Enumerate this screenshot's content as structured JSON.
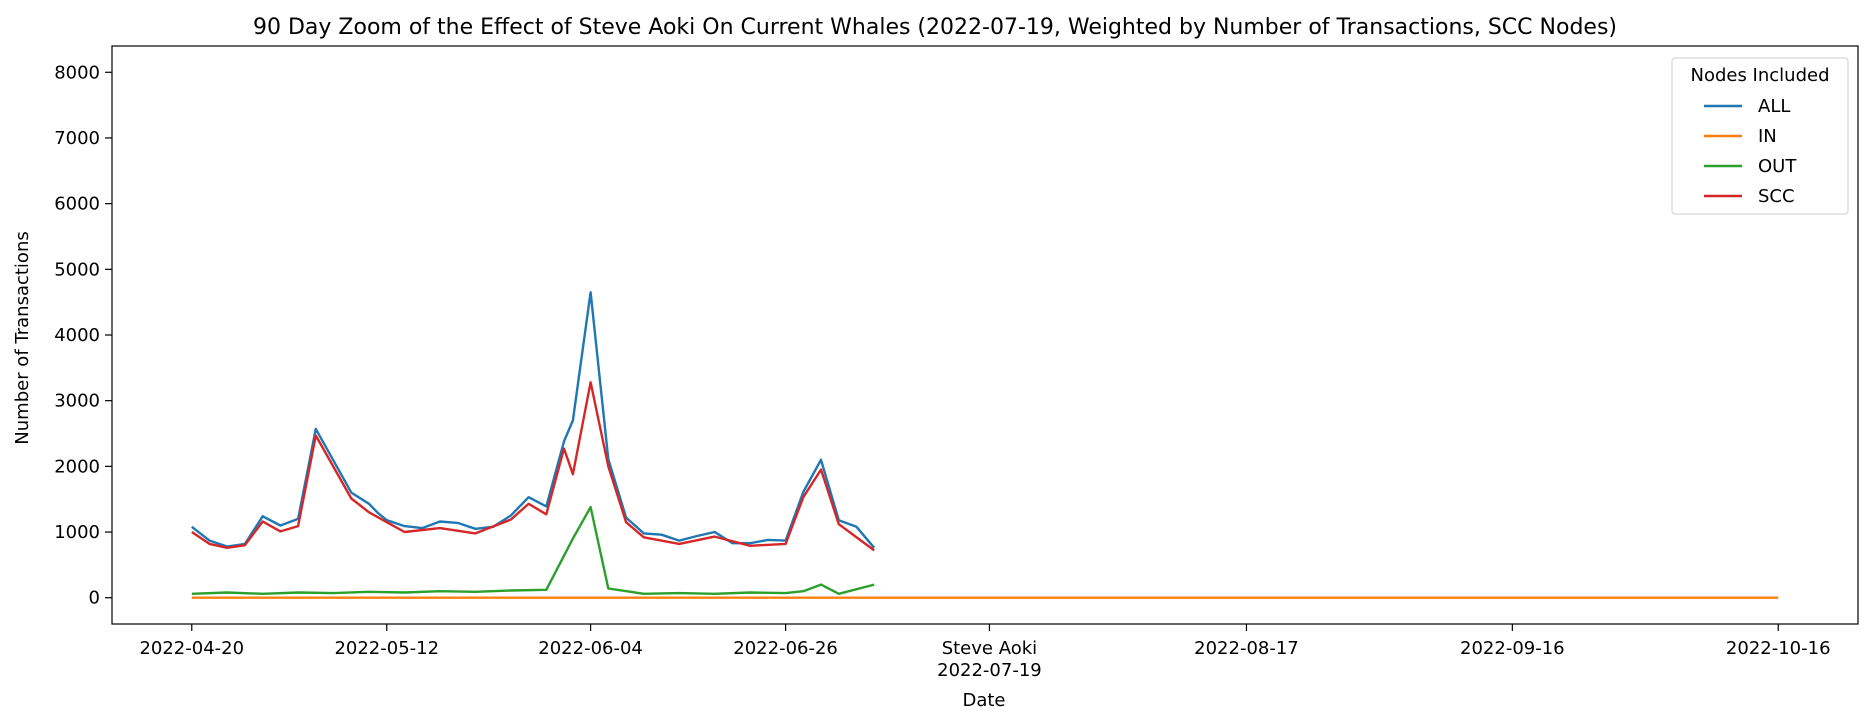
{
  "chart_data": {
    "type": "line",
    "title": "90 Day Zoom of the Effect of Steve Aoki On Current Whales (2022-07-19, Weighted by Number of Transactions, SCC Nodes)",
    "xlabel": "Date",
    "ylabel": "Number of Transactions",
    "x_start": "2022-04-20",
    "x_end": "2022-10-16",
    "xlim": [
      "2022-04-11",
      "2022-10-25"
    ],
    "ylim": [
      -400,
      8400
    ],
    "x_tick_labels": [
      "2022-04-20",
      "2022-05-12",
      "2022-06-04",
      "2022-06-26",
      "2022-07-19",
      "2022-08-17",
      "2022-09-16",
      "2022-10-16"
    ],
    "y_ticks": [
      0,
      1000,
      2000,
      3000,
      4000,
      5000,
      6000,
      7000,
      8000
    ],
    "event": {
      "label": "Steve Aoki",
      "date": "2022-07-19"
    },
    "grid": false,
    "legend": {
      "title": "Nodes Included",
      "placement": "top-right"
    },
    "series": [
      {
        "name": "ALL",
        "color": "#1f77b4",
        "points": [
          [
            "2022-04-20",
            1080
          ],
          [
            "2022-04-22",
            870
          ],
          [
            "2022-04-24",
            780
          ],
          [
            "2022-04-26",
            820
          ],
          [
            "2022-04-28",
            1240
          ],
          [
            "2022-04-30",
            1100
          ],
          [
            "2022-05-02",
            1200
          ],
          [
            "2022-05-04",
            2570
          ],
          [
            "2022-05-08",
            1600
          ],
          [
            "2022-05-10",
            1430
          ],
          [
            "2022-05-11",
            1290
          ],
          [
            "2022-05-12",
            1180
          ],
          [
            "2022-05-14",
            1090
          ],
          [
            "2022-05-16",
            1060
          ],
          [
            "2022-05-18",
            1160
          ],
          [
            "2022-05-20",
            1140
          ],
          [
            "2022-05-22",
            1050
          ],
          [
            "2022-05-24",
            1080
          ],
          [
            "2022-05-26",
            1250
          ],
          [
            "2022-05-28",
            1530
          ],
          [
            "2022-05-30",
            1390
          ],
          [
            "2022-06-01",
            2380
          ],
          [
            "2022-06-02",
            2700
          ],
          [
            "2022-06-04",
            4650
          ],
          [
            "2022-06-06",
            2110
          ],
          [
            "2022-06-08",
            1220
          ],
          [
            "2022-06-10",
            980
          ],
          [
            "2022-06-12",
            960
          ],
          [
            "2022-06-14",
            870
          ],
          [
            "2022-06-16",
            940
          ],
          [
            "2022-06-18",
            1000
          ],
          [
            "2022-06-20",
            830
          ],
          [
            "2022-06-22",
            830
          ],
          [
            "2022-06-24",
            880
          ],
          [
            "2022-06-26",
            870
          ],
          [
            "2022-06-28",
            1610
          ],
          [
            "2022-06-30",
            2100
          ],
          [
            "2022-07-02",
            1180
          ],
          [
            "2022-07-04",
            1080
          ],
          [
            "2022-07-06",
            760
          ]
        ]
      },
      {
        "name": "IN",
        "color": "#ff7f0e",
        "points": [
          [
            "2022-04-20",
            0
          ],
          [
            "2022-10-16",
            0
          ]
        ]
      },
      {
        "name": "OUT",
        "color": "#2ca02c",
        "points": [
          [
            "2022-04-20",
            60
          ],
          [
            "2022-04-24",
            80
          ],
          [
            "2022-04-28",
            60
          ],
          [
            "2022-05-02",
            80
          ],
          [
            "2022-05-06",
            70
          ],
          [
            "2022-05-10",
            90
          ],
          [
            "2022-05-14",
            80
          ],
          [
            "2022-05-18",
            100
          ],
          [
            "2022-05-22",
            90
          ],
          [
            "2022-05-26",
            110
          ],
          [
            "2022-05-30",
            120
          ],
          [
            "2022-06-02",
            900
          ],
          [
            "2022-06-04",
            1380
          ],
          [
            "2022-06-06",
            140
          ],
          [
            "2022-06-10",
            60
          ],
          [
            "2022-06-14",
            70
          ],
          [
            "2022-06-18",
            60
          ],
          [
            "2022-06-22",
            80
          ],
          [
            "2022-06-26",
            70
          ],
          [
            "2022-06-28",
            100
          ],
          [
            "2022-06-30",
            200
          ],
          [
            "2022-07-02",
            60
          ],
          [
            "2022-07-06",
            200
          ]
        ]
      },
      {
        "name": "SCC",
        "color": "#d62728",
        "points": [
          [
            "2022-04-20",
            1000
          ],
          [
            "2022-04-22",
            820
          ],
          [
            "2022-04-24",
            760
          ],
          [
            "2022-04-26",
            800
          ],
          [
            "2022-04-28",
            1160
          ],
          [
            "2022-04-30",
            1010
          ],
          [
            "2022-05-02",
            1090
          ],
          [
            "2022-05-04",
            2470
          ],
          [
            "2022-05-08",
            1510
          ],
          [
            "2022-05-10",
            1300
          ],
          [
            "2022-05-12",
            1150
          ],
          [
            "2022-05-14",
            1000
          ],
          [
            "2022-05-18",
            1060
          ],
          [
            "2022-05-22",
            980
          ],
          [
            "2022-05-26",
            1190
          ],
          [
            "2022-05-28",
            1430
          ],
          [
            "2022-05-30",
            1270
          ],
          [
            "2022-06-01",
            2270
          ],
          [
            "2022-06-02",
            1880
          ],
          [
            "2022-06-04",
            3280
          ],
          [
            "2022-06-06",
            2000
          ],
          [
            "2022-06-08",
            1150
          ],
          [
            "2022-06-10",
            920
          ],
          [
            "2022-06-14",
            820
          ],
          [
            "2022-06-18",
            930
          ],
          [
            "2022-06-22",
            790
          ],
          [
            "2022-06-26",
            820
          ],
          [
            "2022-06-28",
            1530
          ],
          [
            "2022-06-30",
            1950
          ],
          [
            "2022-07-02",
            1120
          ],
          [
            "2022-07-06",
            720
          ]
        ]
      }
    ]
  }
}
